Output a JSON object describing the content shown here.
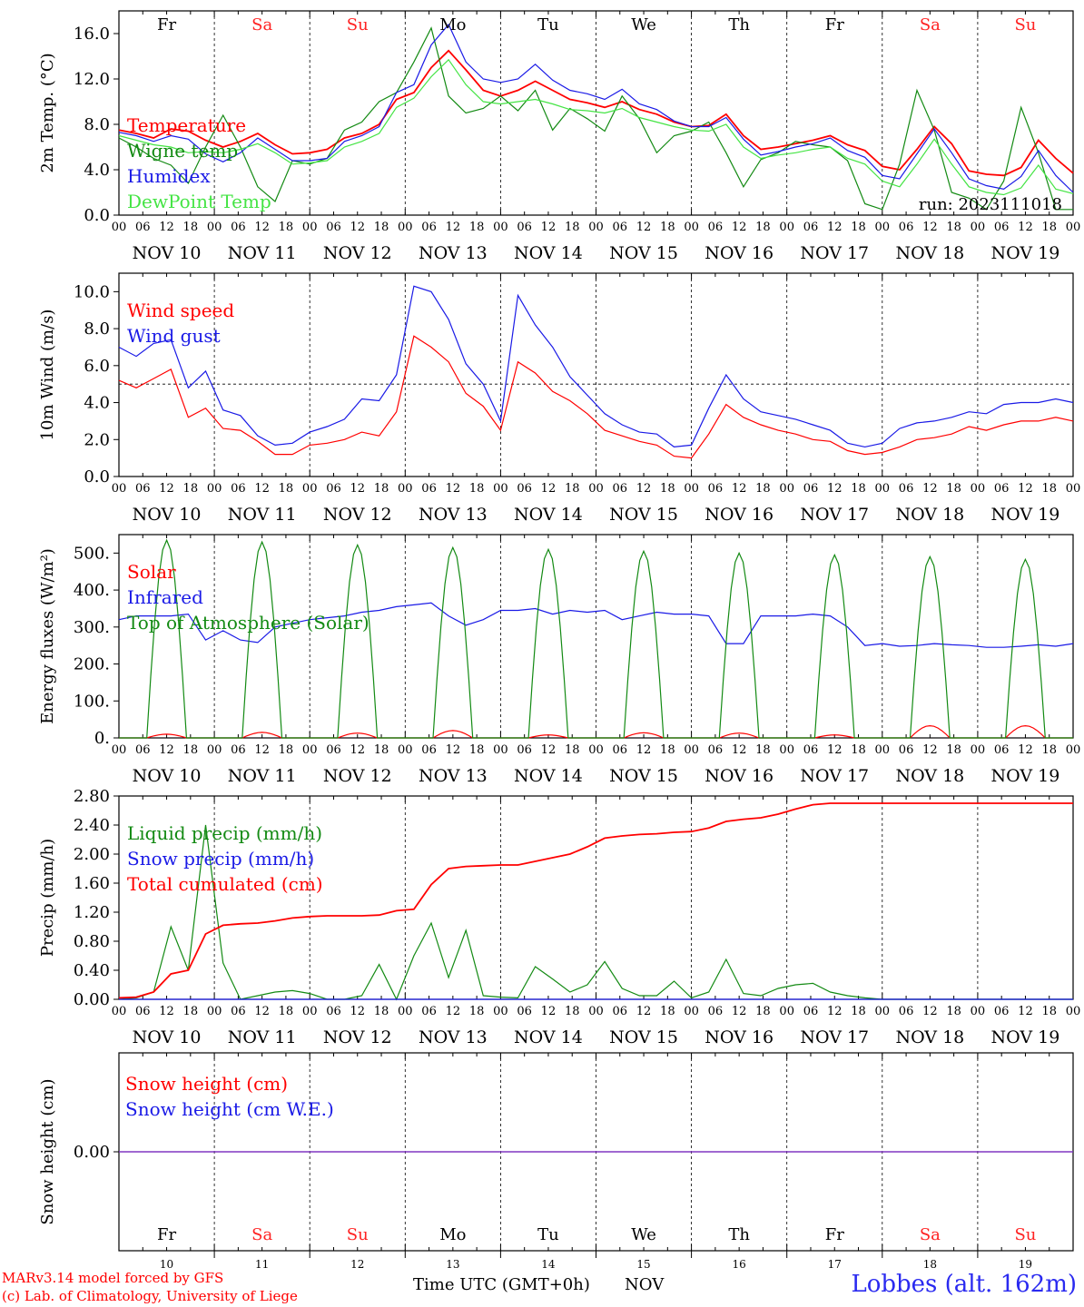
{
  "colors": {
    "red": "#ff0000",
    "dark_green": "#138a13",
    "blue": "#1a1ae6",
    "light_green": "#44e444",
    "weekend": "#ff2222",
    "weekday": "#000000",
    "snow_line": "#7b2fbf",
    "station": "#2a2af0"
  },
  "time_axis": {
    "hour_ticks": [
      "00",
      "06",
      "12",
      "18"
    ],
    "last_tick": "00",
    "dates": [
      "NOV 10",
      "NOV 11",
      "NOV 12",
      "NOV 13",
      "NOV 14",
      "NOV 15",
      "NOV 16",
      "NOV 17",
      "NOV 18",
      "NOV 19"
    ],
    "weekdays": [
      "Fr",
      "Sa",
      "Su",
      "Mo",
      "Tu",
      "We",
      "Th",
      "Fr",
      "Sa",
      "Su"
    ],
    "weekend_days": [
      "Sa",
      "Su"
    ],
    "day_numbers": [
      "10",
      "11",
      "12",
      "13",
      "14",
      "15",
      "16",
      "17",
      "18",
      "19"
    ]
  },
  "footer": {
    "model": "MARv3.14 model forced by GFS",
    "credit": "(c) Lab. of Climatology, University of Liege",
    "xaxis_title": "Time UTC (GMT+0h)",
    "month": "NOV",
    "station": "Lobbes (alt. 162m)"
  },
  "chart_data": [
    {
      "type": "line",
      "ylabel": "2m Temp. (°C)",
      "ylim": [
        0,
        18
      ],
      "yticks": [
        "0.0",
        "4.0",
        "8.0",
        "12.0",
        "16.0"
      ],
      "show_weekdays": true,
      "annotation": "run: 2023111018",
      "series": [
        {
          "name": "Temperature",
          "color": "red",
          "values": [
            7.5,
            7.2,
            6.8,
            7.6,
            7.4,
            6.6,
            6.0,
            6.5,
            7.2,
            6.2,
            5.4,
            5.5,
            5.8,
            6.8,
            7.2,
            8.0,
            10.2,
            10.8,
            13.0,
            14.5,
            12.8,
            11.0,
            10.5,
            11.0,
            11.8,
            11.0,
            10.2,
            9.9,
            9.5,
            10.0,
            9.3,
            8.9,
            8.2,
            7.8,
            7.9,
            8.9,
            7.0,
            5.8,
            6.0,
            6.3,
            6.6,
            7.0,
            6.2,
            5.7,
            4.3,
            4.0,
            5.8,
            7.8,
            6.3,
            3.9,
            3.6,
            3.5,
            4.2,
            6.6,
            5.0,
            3.7
          ]
        },
        {
          "name": "Wigne temp",
          "color": "dark_green",
          "values": [
            6.8,
            6.0,
            5.0,
            4.4,
            2.8,
            6.0,
            8.8,
            6.0,
            2.5,
            1.2,
            4.8,
            4.5,
            5.0,
            7.5,
            8.2,
            10.0,
            10.8,
            13.5,
            16.5,
            10.5,
            9.0,
            9.4,
            10.5,
            9.2,
            11.0,
            7.5,
            9.4,
            8.5,
            7.4,
            10.5,
            8.5,
            5.5,
            7.0,
            7.4,
            8.2,
            5.5,
            2.5,
            4.9,
            5.5,
            6.5,
            6.2,
            6.0,
            4.8,
            1.0,
            0.5,
            4.5,
            11.0,
            7.5,
            2.0,
            1.5,
            0.5,
            3.0,
            9.5,
            5.5,
            0.5,
            0.5
          ]
        },
        {
          "name": "Humidex",
          "color": "blue",
          "values": [
            7.3,
            7.0,
            6.5,
            7.0,
            6.7,
            5.4,
            4.7,
            5.5,
            6.8,
            5.8,
            4.8,
            4.8,
            5.0,
            6.5,
            7.0,
            7.8,
            10.8,
            11.5,
            15.0,
            16.8,
            13.5,
            12.0,
            11.7,
            12.0,
            13.3,
            11.9,
            11.0,
            10.7,
            10.2,
            11.1,
            9.8,
            9.3,
            8.3,
            7.8,
            7.8,
            8.6,
            6.7,
            5.3,
            5.6,
            6.0,
            6.3,
            6.8,
            5.7,
            5.1,
            3.5,
            3.2,
            5.4,
            7.6,
            5.5,
            3.2,
            2.6,
            2.3,
            3.4,
            5.7,
            3.5,
            2.0
          ]
        },
        {
          "name": "DewPoint Temp",
          "color": "light_green",
          "values": [
            7.0,
            6.6,
            6.2,
            6.0,
            5.5,
            5.6,
            5.5,
            5.8,
            6.3,
            5.5,
            4.5,
            4.6,
            4.8,
            6.0,
            6.5,
            7.2,
            9.5,
            10.3,
            12.2,
            13.7,
            11.5,
            10.0,
            9.8,
            10.0,
            10.2,
            9.8,
            9.3,
            9.2,
            9.0,
            9.4,
            8.6,
            8.2,
            7.8,
            7.5,
            7.4,
            8.0,
            6.0,
            5.0,
            5.3,
            5.5,
            5.8,
            6.0,
            5.0,
            4.5,
            3.0,
            2.5,
            4.5,
            6.7,
            4.5,
            2.5,
            2.0,
            1.8,
            2.4,
            4.4,
            2.3,
            1.9
          ]
        }
      ]
    },
    {
      "type": "line",
      "ylabel": "10m Wind (m/s)",
      "ylim": [
        0,
        11
      ],
      "yticks": [
        "0.0",
        "2.0",
        "4.0",
        "6.0",
        "8.0",
        "10.0"
      ],
      "reference_line": 5.0,
      "series": [
        {
          "name": "Wind speed",
          "color": "red",
          "values": [
            5.2,
            4.8,
            5.3,
            5.8,
            3.2,
            3.7,
            2.6,
            2.5,
            1.9,
            1.2,
            1.2,
            1.7,
            1.8,
            2.0,
            2.4,
            2.2,
            3.5,
            7.6,
            7.0,
            6.2,
            4.5,
            3.8,
            2.5,
            6.2,
            5.6,
            4.6,
            4.1,
            3.4,
            2.5,
            2.2,
            1.9,
            1.7,
            1.1,
            1.0,
            2.3,
            3.9,
            3.2,
            2.8,
            2.5,
            2.3,
            2.0,
            1.9,
            1.4,
            1.2,
            1.3,
            1.6,
            2.0,
            2.1,
            2.3,
            2.7,
            2.5,
            2.8,
            3.0,
            3.0,
            3.2,
            3.0
          ]
        },
        {
          "name": "Wind gust",
          "color": "blue",
          "values": [
            7.0,
            6.5,
            7.2,
            7.4,
            4.8,
            5.7,
            3.6,
            3.3,
            2.2,
            1.7,
            1.8,
            2.4,
            2.7,
            3.1,
            4.2,
            4.1,
            5.5,
            10.3,
            10.0,
            8.5,
            6.1,
            5.0,
            3.0,
            9.8,
            8.2,
            7.0,
            5.4,
            4.4,
            3.4,
            2.8,
            2.4,
            2.3,
            1.6,
            1.7,
            3.7,
            5.5,
            4.2,
            3.5,
            3.3,
            3.1,
            2.8,
            2.5,
            1.8,
            1.6,
            1.8,
            2.6,
            2.9,
            3.0,
            3.2,
            3.5,
            3.4,
            3.9,
            4.0,
            4.0,
            4.2,
            4.0
          ]
        }
      ]
    },
    {
      "type": "line",
      "ylabel": "Energy fluxes (W/m²)",
      "ylim": [
        0,
        550
      ],
      "yticks": [
        "0.",
        "100.",
        "200.",
        "300.",
        "400.",
        "500."
      ],
      "solar_peaks": [
        10,
        15,
        13,
        20,
        8,
        14,
        13,
        8,
        33,
        33
      ],
      "toa_peaks": [
        535,
        530,
        522,
        515,
        510,
        505,
        500,
        495,
        490,
        483
      ],
      "series": [
        {
          "name": "Solar",
          "color": "red",
          "shape": "diurnal peaks"
        },
        {
          "name": "Infrared",
          "color": "blue",
          "values": [
            320,
            330,
            330,
            330,
            335,
            265,
            290,
            265,
            258,
            300,
            310,
            320,
            325,
            330,
            340,
            345,
            355,
            360,
            365,
            330,
            305,
            320,
            345,
            345,
            350,
            335,
            345,
            340,
            345,
            320,
            330,
            340,
            335,
            335,
            330,
            255,
            255,
            330,
            330,
            330,
            335,
            330,
            300,
            250,
            255,
            248,
            250,
            255,
            252,
            250,
            245,
            245,
            248,
            252,
            248,
            255
          ]
        },
        {
          "name": "Top of Atmosphere (Solar)",
          "color": "dark_green",
          "shape": "diurnal peaks"
        }
      ]
    },
    {
      "type": "line",
      "ylabel": "Precip (mm/h)",
      "ylim": [
        0,
        2.8
      ],
      "yticks": [
        "0.00",
        "0.40",
        "0.80",
        "1.20",
        "1.60",
        "2.00",
        "2.40",
        "2.80"
      ],
      "series": [
        {
          "name": "Liquid precip (mm/h)",
          "color": "dark_green",
          "values": [
            0.0,
            0.02,
            0.1,
            1.0,
            0.4,
            2.4,
            0.5,
            0.0,
            0.05,
            0.1,
            0.12,
            0.08,
            0.0,
            0.0,
            0.05,
            0.48,
            0.0,
            0.6,
            1.05,
            0.3,
            0.95,
            0.05,
            0.03,
            0.02,
            0.45,
            0.28,
            0.1,
            0.2,
            0.52,
            0.15,
            0.05,
            0.05,
            0.25,
            0.02,
            0.1,
            0.55,
            0.08,
            0.05,
            0.15,
            0.2,
            0.22,
            0.1,
            0.05,
            0.02,
            0.0,
            0.0,
            0.0,
            0.0,
            0.0,
            0.0,
            0.0,
            0.0,
            0.0,
            0.0,
            0.0,
            0.0
          ]
        },
        {
          "name": "Snow precip (mm/h)",
          "color": "blue",
          "values": [
            0,
            0
          ]
        },
        {
          "name": "Total cumulated (cm)",
          "color": "red",
          "values": [
            0.02,
            0.03,
            0.1,
            0.35,
            0.4,
            0.9,
            1.02,
            1.04,
            1.05,
            1.08,
            1.12,
            1.14,
            1.15,
            1.15,
            1.15,
            1.16,
            1.22,
            1.24,
            1.58,
            1.8,
            1.83,
            1.84,
            1.85,
            1.85,
            1.9,
            1.95,
            2.0,
            2.1,
            2.22,
            2.25,
            2.27,
            2.28,
            2.3,
            2.31,
            2.36,
            2.45,
            2.48,
            2.5,
            2.55,
            2.62,
            2.68,
            2.7,
            2.7,
            2.7,
            2.7,
            2.7,
            2.7,
            2.7,
            2.7,
            2.7,
            2.7,
            2.7,
            2.7,
            2.7,
            2.7,
            2.7
          ]
        }
      ]
    },
    {
      "type": "line",
      "ylabel": "Snow height (cm)",
      "ylim": [
        -1,
        1
      ],
      "yticks": [
        "0.00"
      ],
      "series": [
        {
          "name": "Snow height (cm)",
          "color": "red",
          "values": [
            0,
            0
          ]
        },
        {
          "name": "Snow height (cm W.E.)",
          "color": "blue",
          "values": [
            0,
            0
          ]
        }
      ]
    }
  ]
}
